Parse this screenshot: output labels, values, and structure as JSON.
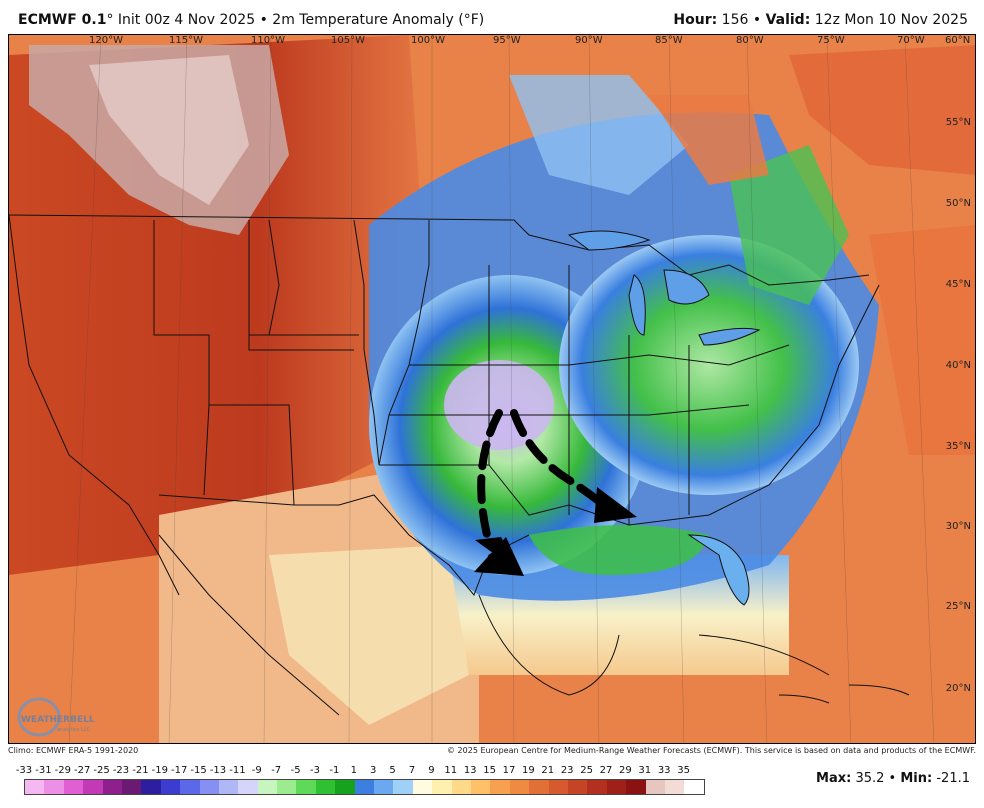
{
  "header": {
    "model": "ECMWF 0.1",
    "degree": "°",
    "init": "Init 00z 4 Nov 2025",
    "sep": "•",
    "product": "2m Temperature Anomaly (°F)",
    "hour_label": "Hour:",
    "hour_value": "156",
    "valid_label": "Valid:",
    "valid_value": "12z Mon 10 Nov 2025"
  },
  "map": {
    "lon_labels": [
      "120°W",
      "115°W",
      "110°W",
      "105°W",
      "100°W",
      "95°W",
      "90°W",
      "85°W",
      "80°W",
      "75°W",
      "70°W",
      "60°N"
    ],
    "lat_labels": [
      "55°N",
      "50°N",
      "45°N",
      "40°N",
      "35°N",
      "30°N",
      "25°N",
      "20°N"
    ],
    "logo_text": "WEATHERBELL",
    "logo_sub": "analytics LLC",
    "arrows": [
      "cold-air-arrow-south",
      "cold-air-arrow-southeast"
    ]
  },
  "credits": {
    "left": "Climo: ECMWF ERA-5 1991-2020",
    "right": "© 2025 European Centre for Medium-Range Weather Forecasts (ECMWF). This service is based on data and products of the ECMWF."
  },
  "legend": {
    "labels": [
      "-33",
      "-31",
      "-29",
      "-27",
      "-25",
      "-23",
      "-21",
      "-19",
      "-17",
      "-15",
      "-13",
      "-11",
      "-9",
      "-7",
      "-5",
      "-3",
      "-1",
      "1",
      "3",
      "5",
      "7",
      "9",
      "11",
      "13",
      "15",
      "17",
      "19",
      "21",
      "23",
      "25",
      "27",
      "29",
      "31",
      "33",
      "35"
    ],
    "colors": [
      "#f5b8f0",
      "#ee8fe6",
      "#e060d4",
      "#c23ab5",
      "#8f1f8c",
      "#6a1a73",
      "#2b1fa0",
      "#3a3dd0",
      "#5b68e8",
      "#8690f2",
      "#b0b7f6",
      "#d6d4fa",
      "#c7f5c0",
      "#9ceb8f",
      "#5fd95a",
      "#2ec232",
      "#16a21d",
      "#3d7fe0",
      "#6aa8f0",
      "#9fd0f7",
      "#fffbe0",
      "#fff0b0",
      "#ffd98a",
      "#ffc06a",
      "#f7a050",
      "#ef8a42",
      "#e27036",
      "#d55a2e",
      "#c44426",
      "#b33020",
      "#9f2018",
      "#8a1212",
      "#e8c6c0",
      "#f3dcd6",
      "#ffffff"
    ],
    "max_label": "Max:",
    "max_value": "35.2",
    "min_label": "Min:",
    "min_value": "-21.1"
  }
}
